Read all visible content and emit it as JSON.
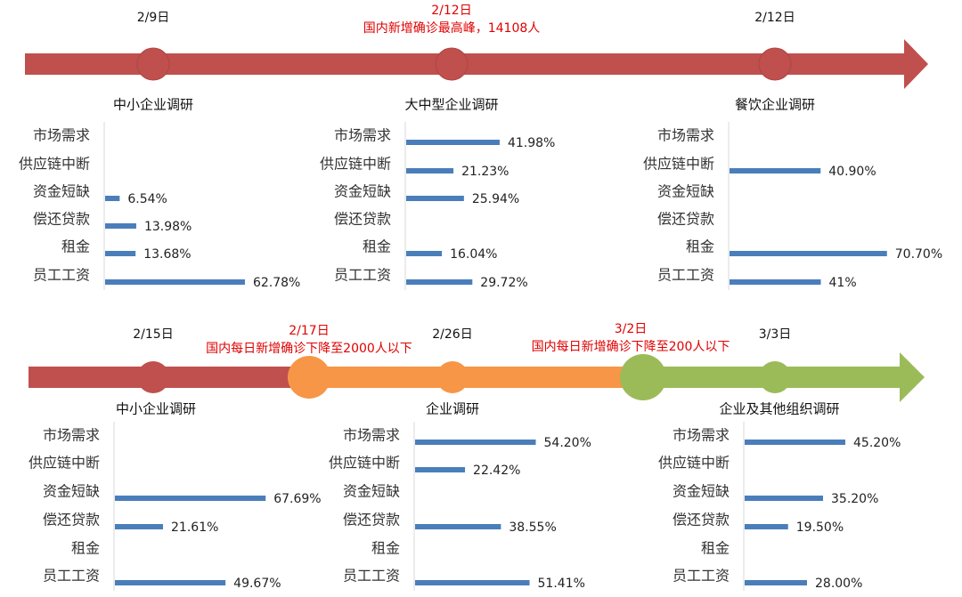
{
  "timelines": [
    {
      "events": [
        {
          "date": "2/9日"
        },
        {
          "date": "2/12日",
          "note": "国内新增确诊最高峰，14108人"
        },
        {
          "date": "2/12日"
        }
      ]
    },
    {
      "events": [
        {
          "date": "2/15日"
        },
        {
          "date": "2/17日",
          "note": "国内每日新增确诊下降至2000人以下"
        },
        {
          "date": "2/26日"
        },
        {
          "date": "3/2日",
          "note": "国内每日新增确诊下降至200人以下"
        },
        {
          "date": "3/3日"
        }
      ]
    }
  ],
  "chart_data": [
    {
      "type": "bar",
      "orientation": "horizontal",
      "title": "中小企业调研",
      "color": "#4a7ebb",
      "categories": [
        "市场需求",
        "供应链中断",
        "资金短缺",
        "偿还贷款",
        "租金",
        "员工工资"
      ],
      "values": [
        null,
        null,
        6.54,
        13.98,
        13.68,
        62.78
      ],
      "value_labels": [
        null,
        null,
        "6.54%",
        "13.98%",
        "13.68%",
        "62.78%"
      ]
    },
    {
      "type": "bar",
      "orientation": "horizontal",
      "title": "大中型企业调研",
      "color": "#4a7ebb",
      "categories": [
        "市场需求",
        "供应链中断",
        "资金短缺",
        "偿还贷款",
        "租金",
        "员工工资"
      ],
      "values": [
        41.98,
        21.23,
        25.94,
        null,
        16.04,
        29.72
      ],
      "value_labels": [
        "41.98%",
        "21.23%",
        "25.94%",
        null,
        "16.04%",
        "29.72%"
      ]
    },
    {
      "type": "bar",
      "orientation": "horizontal",
      "title": "餐饮企业调研",
      "color": "#4a7ebb",
      "categories": [
        "市场需求",
        "供应链中断",
        "资金短缺",
        "偿还贷款",
        "租金",
        "员工工资"
      ],
      "values": [
        null,
        40.9,
        null,
        null,
        70.7,
        41
      ],
      "value_labels": [
        null,
        "40.90%",
        null,
        null,
        "70.70%",
        "41%"
      ]
    },
    {
      "type": "bar",
      "orientation": "horizontal",
      "title": "中小企业调研",
      "color": "#4a7ebb",
      "categories": [
        "市场需求",
        "供应链中断",
        "资金短缺",
        "偿还贷款",
        "租金",
        "员工工资"
      ],
      "values": [
        null,
        null,
        67.69,
        21.61,
        null,
        49.67
      ],
      "value_labels": [
        null,
        null,
        "67.69%",
        "21.61%",
        null,
        "49.67%"
      ]
    },
    {
      "type": "bar",
      "orientation": "horizontal",
      "title": "企业调研",
      "color": "#4a7ebb",
      "categories": [
        "市场需求",
        "供应链中断",
        "资金短缺",
        "偿还贷款",
        "租金",
        "员工工资"
      ],
      "values": [
        54.2,
        22.42,
        null,
        38.55,
        null,
        51.41
      ],
      "value_labels": [
        "54.20%",
        "22.42%",
        null,
        "38.55%",
        null,
        "51.41%"
      ]
    },
    {
      "type": "bar",
      "orientation": "horizontal",
      "title": "企业及其他组织调研",
      "color": "#4a7ebb",
      "categories": [
        "市场需求",
        "供应链中断",
        "资金短缺",
        "偿还贷款",
        "租金",
        "员工工资"
      ],
      "values": [
        45.2,
        null,
        35.2,
        19.5,
        null,
        28.0
      ],
      "value_labels": [
        "45.20%",
        null,
        "35.20%",
        "19.50%",
        null,
        "28.00%"
      ]
    }
  ]
}
